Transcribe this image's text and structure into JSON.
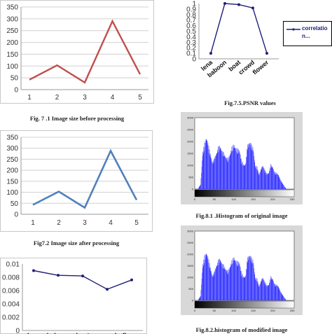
{
  "charts": {
    "size_before": {
      "caption": "Fig. 7 .1 Image size before processing",
      "chart_data": {
        "type": "line",
        "categories": [
          "1",
          "2",
          "3",
          "4",
          "5"
        ],
        "values": [
          42,
          103,
          30,
          290,
          65
        ],
        "ylim": [
          0,
          350
        ],
        "yticks": [
          "0",
          "50",
          "100",
          "150",
          "200",
          "250",
          "300",
          "350"
        ],
        "color": "#c0504d",
        "grid": true
      }
    },
    "size_after": {
      "caption": "Fig7.2 Image size after processing",
      "chart_data": {
        "type": "line",
        "categories": [
          "1",
          "2",
          "3",
          "4",
          "5"
        ],
        "values": [
          43,
          103,
          30,
          288,
          65
        ],
        "ylim": [
          0,
          350
        ],
        "yticks": [
          "0",
          "50",
          "100",
          "150",
          "200",
          "250",
          "300",
          "350"
        ],
        "color": "#4f81bd",
        "grid": true
      }
    },
    "mse": {
      "chart_data": {
        "type": "line",
        "categories": [
          "lena",
          "baboon",
          "boat",
          "crowd",
          "flower"
        ],
        "values": [
          0.009,
          0.0083,
          0.0082,
          0.0062,
          0.0076
        ],
        "ylim": [
          0,
          0.01
        ],
        "yticks": [
          "0",
          "0.002",
          "0.004",
          "0.006",
          "0.008",
          "0.01"
        ],
        "color": "#1f1f7a",
        "grid": false
      }
    },
    "psnr": {
      "caption": "Fig.7.5.PSNR values",
      "chart_data": {
        "type": "line",
        "categories": [
          "lena",
          "baboon",
          "boat",
          "crowd",
          "flower"
        ],
        "values": [
          0.1,
          1.0,
          0.98,
          0.92,
          0.1
        ],
        "ylim": [
          0,
          1
        ],
        "yticks": [
          "0",
          "0.1",
          "0.2",
          "0.3",
          "0.4",
          "0.5",
          "0.6",
          "0.7",
          "0.8",
          "0.9",
          "1"
        ],
        "color": "#1f1f7a",
        "legend": [
          "correlatio",
          "n..."
        ],
        "legend_position": "right",
        "grid": false
      }
    },
    "hist_original": {
      "caption": "Fig.8.1 .Histogram of original image",
      "chart_data": {
        "type": "bar",
        "xticks": [
          "0",
          "50",
          "100",
          "150",
          "200",
          "250"
        ],
        "yticks": [
          "0",
          "500",
          "1000",
          "1500",
          "2000",
          "2500",
          "3000"
        ],
        "xlim": [
          0,
          255
        ],
        "ylim": [
          0,
          3000
        ],
        "color": "#3333ff",
        "bins_x": [
          0,
          8,
          15,
          20,
          25,
          30,
          35,
          40,
          45,
          50,
          55,
          60,
          65,
          70,
          75,
          80,
          85,
          90,
          95,
          100,
          105,
          110,
          115,
          120,
          125,
          130,
          135,
          140,
          145,
          150,
          155,
          160,
          165,
          170,
          175,
          180,
          185,
          190,
          195,
          200,
          205,
          210,
          215,
          220,
          225,
          230,
          235,
          240,
          245,
          255
        ],
        "values": [
          0,
          0,
          200,
          1500,
          1950,
          2200,
          1900,
          1500,
          1150,
          1300,
          1500,
          1780,
          1850,
          1600,
          1550,
          1350,
          1300,
          1450,
          1780,
          1900,
          1750,
          1700,
          1650,
          1200,
          1050,
          1050,
          1850,
          2000,
          1920,
          1750,
          1000,
          950,
          600,
          900,
          1000,
          800,
          650,
          700,
          1050,
          950,
          700,
          700,
          600,
          400,
          250,
          120,
          0,
          0,
          0,
          0
        ]
      }
    },
    "hist_modified": {
      "caption": "Fig.8.2.histogram of modified image",
      "chart_data": {
        "type": "bar",
        "xticks": [
          "0",
          "50",
          "100",
          "150",
          "200",
          "250"
        ],
        "yticks": [
          "0",
          "500",
          "1000",
          "1500",
          "2000",
          "2500",
          "3000"
        ],
        "xlim": [
          0,
          255
        ],
        "ylim": [
          0,
          3000
        ],
        "color": "#3333ff",
        "bins_x": [
          0,
          8,
          15,
          20,
          25,
          30,
          35,
          40,
          45,
          50,
          55,
          60,
          65,
          70,
          75,
          80,
          85,
          90,
          95,
          100,
          105,
          110,
          115,
          120,
          125,
          130,
          135,
          140,
          145,
          150,
          155,
          160,
          165,
          170,
          175,
          180,
          185,
          190,
          195,
          200,
          205,
          210,
          215,
          220,
          225,
          230,
          235,
          240,
          245,
          255
        ],
        "values": [
          0,
          0,
          200,
          1500,
          1950,
          2100,
          1850,
          1450,
          1100,
          1250,
          1500,
          1750,
          1850,
          1600,
          1550,
          1350,
          1300,
          1450,
          1750,
          1900,
          1750,
          1700,
          1650,
          1200,
          1050,
          1050,
          1850,
          2000,
          1900,
          1750,
          1000,
          950,
          600,
          900,
          1000,
          800,
          650,
          700,
          1050,
          950,
          700,
          700,
          600,
          400,
          250,
          120,
          0,
          0,
          0,
          0
        ]
      }
    }
  }
}
